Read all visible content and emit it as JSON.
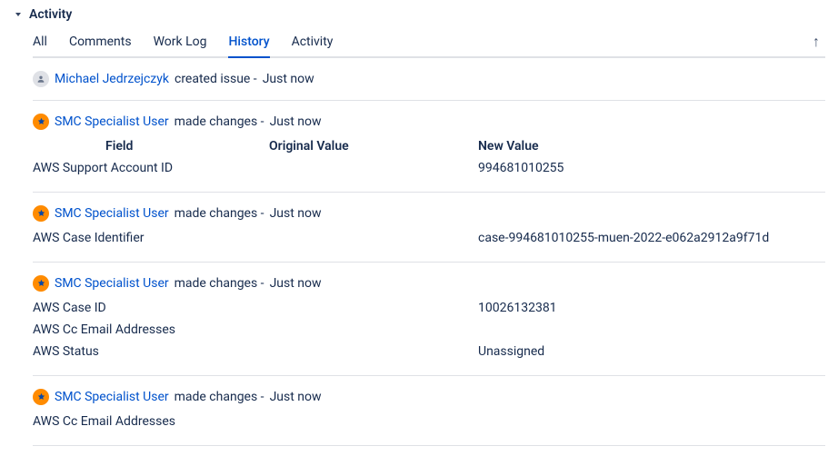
{
  "panel": {
    "title": "Activity"
  },
  "tabs": {
    "items": [
      {
        "label": "All"
      },
      {
        "label": "Comments"
      },
      {
        "label": "Work Log"
      },
      {
        "label": "History"
      },
      {
        "label": "Activity"
      }
    ],
    "active_index": 3
  },
  "headers": {
    "field": "Field",
    "original": "Original Value",
    "new": "New Value"
  },
  "entries": [
    {
      "avatar": "gray",
      "user": "Michael Jedrzejczyk",
      "action": "created issue -",
      "time": "Just now",
      "changes": []
    },
    {
      "avatar": "orange",
      "user": "SMC Specialist User",
      "action": "made changes -",
      "time": "Just now",
      "show_header": true,
      "changes": [
        {
          "field": "AWS Support Account ID",
          "orig": "",
          "new": "994681010255"
        }
      ]
    },
    {
      "avatar": "orange",
      "user": "SMC Specialist User",
      "action": "made changes -",
      "time": "Just now",
      "changes": [
        {
          "field": "AWS Case Identifier",
          "orig": "",
          "new": "case-994681010255-muen-2022-e062a2912a9f71d"
        }
      ]
    },
    {
      "avatar": "orange",
      "user": "SMC Specialist User",
      "action": "made changes -",
      "time": "Just now",
      "changes": [
        {
          "field": "AWS Case ID",
          "orig": "",
          "new": "10026132381"
        },
        {
          "field": "AWS Cc Email Addresses",
          "orig": "",
          "new": ""
        },
        {
          "field": "AWS Status",
          "orig": "",
          "new": "Unassigned"
        }
      ]
    },
    {
      "avatar": "orange",
      "user": "SMC Specialist User",
      "action": "made changes -",
      "time": "Just now",
      "changes": [
        {
          "field": "AWS Cc Email Addresses",
          "orig": "",
          "new": ""
        }
      ]
    }
  ],
  "colors": {
    "link": "#0052cc",
    "text": "#172b4d",
    "border": "#dfe1e6",
    "avatar_orange": "#ff8b00",
    "avatar_gray": "#dfe1e6"
  }
}
